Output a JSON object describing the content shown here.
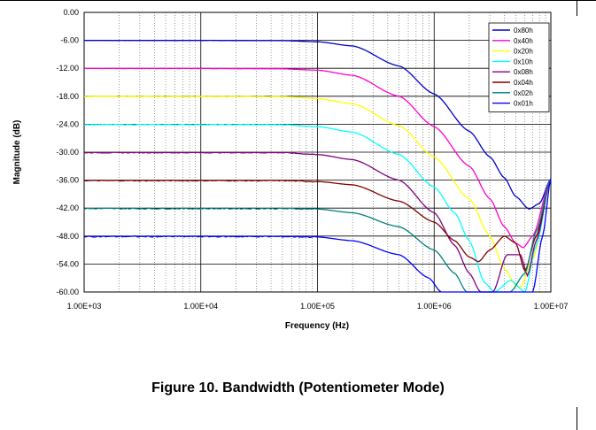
{
  "figure": {
    "caption": "Figure 10. Bandwidth (Potentiometer Mode)"
  },
  "chart_data": {
    "type": "line",
    "title": "",
    "xlabel": "Frequency (Hz)",
    "ylabel": "Magnitude (dB)",
    "xscale": "log",
    "xlim": [
      1000,
      10000000
    ],
    "ylim": [
      -60,
      0
    ],
    "x_ticks": [
      1000,
      10000,
      100000,
      1000000,
      10000000
    ],
    "x_tick_labels": [
      "1.00E+03",
      "1.00E+04",
      "1.00E+05",
      "1.00E+06",
      "1.00E+07"
    ],
    "y_ticks": [
      0,
      -6,
      -12,
      -18,
      -24,
      -30,
      -36,
      -42,
      -48,
      -54,
      -60
    ],
    "y_tick_labels": [
      "0.00",
      "-6.00",
      "-12.00",
      "-18.00",
      "-24.00",
      "-30.00",
      "-36.00",
      "-42.00",
      "-48.00",
      "-54.00",
      "-60.00"
    ],
    "grid": true,
    "legend_position": "top-right",
    "series": [
      {
        "name": "0x80h",
        "color": "#0000cc",
        "points": [
          [
            1000,
            -6.02
          ],
          [
            10000,
            -6.02
          ],
          [
            50000,
            -6.05
          ],
          [
            100000,
            -6.3
          ],
          [
            200000,
            -7.2
          ],
          [
            500000,
            -11.5
          ],
          [
            1000000,
            -17.5
          ],
          [
            2000000,
            -25.5
          ],
          [
            3000000,
            -31
          ],
          [
            4000000,
            -35.5
          ],
          [
            5000000,
            -39.5
          ],
          [
            6500000,
            -42.2
          ],
          [
            8000000,
            -41
          ],
          [
            10000000,
            -35.7
          ]
        ]
      },
      {
        "name": "0x40h",
        "color": "#ff00cc",
        "points": [
          [
            1000,
            -12.04
          ],
          [
            10000,
            -12.04
          ],
          [
            50000,
            -12.1
          ],
          [
            100000,
            -12.4
          ],
          [
            200000,
            -13.5
          ],
          [
            500000,
            -18
          ],
          [
            1000000,
            -24.5
          ],
          [
            2000000,
            -33
          ],
          [
            3000000,
            -40
          ],
          [
            4000000,
            -46
          ],
          [
            5000000,
            -49.5
          ],
          [
            5800000,
            -50.5
          ],
          [
            7000000,
            -48
          ],
          [
            10000000,
            -35.7
          ]
        ]
      },
      {
        "name": "0x20h",
        "color": "#ffff00",
        "points": [
          [
            1000,
            -18.06
          ],
          [
            10000,
            -18.06
          ],
          [
            50000,
            -18.1
          ],
          [
            100000,
            -18.5
          ],
          [
            200000,
            -19.6
          ],
          [
            500000,
            -24.3
          ],
          [
            1000000,
            -31
          ],
          [
            2000000,
            -40
          ],
          [
            3000000,
            -48
          ],
          [
            4000000,
            -55
          ],
          [
            5000000,
            -58.5
          ],
          [
            5500000,
            -59
          ],
          [
            7000000,
            -53
          ],
          [
            10000000,
            -35.7
          ]
        ]
      },
      {
        "name": "0x10h",
        "color": "#00ffff",
        "points": [
          [
            1000,
            -24.08
          ],
          [
            10000,
            -24.08
          ],
          [
            50000,
            -24.1
          ],
          [
            100000,
            -24.5
          ],
          [
            200000,
            -25.7
          ],
          [
            500000,
            -30.5
          ],
          [
            1000000,
            -37.5
          ],
          [
            1500000,
            -43
          ],
          [
            2000000,
            -49
          ],
          [
            2700000,
            -58
          ],
          [
            3300000,
            -60
          ],
          [
            4500000,
            -57.5
          ],
          [
            6000000,
            -60
          ],
          [
            7500000,
            -50
          ],
          [
            10000000,
            -35.7
          ]
        ]
      },
      {
        "name": "0x08h",
        "color": "#800080",
        "points": [
          [
            1000,
            -30.1
          ],
          [
            10000,
            -30.1
          ],
          [
            50000,
            -30.1
          ],
          [
            100000,
            -30.5
          ],
          [
            200000,
            -31.6
          ],
          [
            500000,
            -36
          ],
          [
            1000000,
            -43
          ],
          [
            1500000,
            -50
          ],
          [
            2000000,
            -56
          ],
          [
            2500000,
            -60
          ],
          [
            3200000,
            -60
          ],
          [
            4200000,
            -52
          ],
          [
            5500000,
            -52
          ],
          [
            6300000,
            -56.5
          ],
          [
            7500000,
            -49
          ],
          [
            10000000,
            -35.7
          ]
        ]
      },
      {
        "name": "0x04h",
        "color": "#800000",
        "points": [
          [
            1000,
            -36.1
          ],
          [
            10000,
            -36.1
          ],
          [
            50000,
            -36.1
          ],
          [
            100000,
            -36.3
          ],
          [
            200000,
            -37
          ],
          [
            500000,
            -40.5
          ],
          [
            1000000,
            -45
          ],
          [
            1500000,
            -49
          ],
          [
            2000000,
            -52.5
          ],
          [
            2400000,
            -53.5
          ],
          [
            3000000,
            -51
          ],
          [
            4000000,
            -48
          ],
          [
            5000000,
            -49.5
          ],
          [
            6000000,
            -55.5
          ],
          [
            7500000,
            -48
          ],
          [
            10000000,
            -35.7
          ]
        ]
      },
      {
        "name": "0x02h",
        "color": "#008080",
        "points": [
          [
            1000,
            -42.1
          ],
          [
            10000,
            -42.1
          ],
          [
            50000,
            -42.1
          ],
          [
            100000,
            -42.2
          ],
          [
            200000,
            -43
          ],
          [
            500000,
            -46
          ],
          [
            1000000,
            -51
          ],
          [
            1500000,
            -56
          ],
          [
            1900000,
            -60
          ],
          [
            4500000,
            -60
          ],
          [
            6000000,
            -56
          ],
          [
            7500000,
            -47
          ],
          [
            10000000,
            -35.7
          ]
        ]
      },
      {
        "name": "0x01h",
        "color": "#0000ff",
        "points": [
          [
            1000,
            -48.1
          ],
          [
            10000,
            -48.1
          ],
          [
            50000,
            -48.1
          ],
          [
            100000,
            -48.2
          ],
          [
            200000,
            -49
          ],
          [
            500000,
            -52
          ],
          [
            900000,
            -57
          ],
          [
            1150000,
            -60
          ],
          [
            7000000,
            -60
          ],
          [
            8500000,
            -48
          ],
          [
            10000000,
            -35.7
          ]
        ]
      }
    ]
  }
}
